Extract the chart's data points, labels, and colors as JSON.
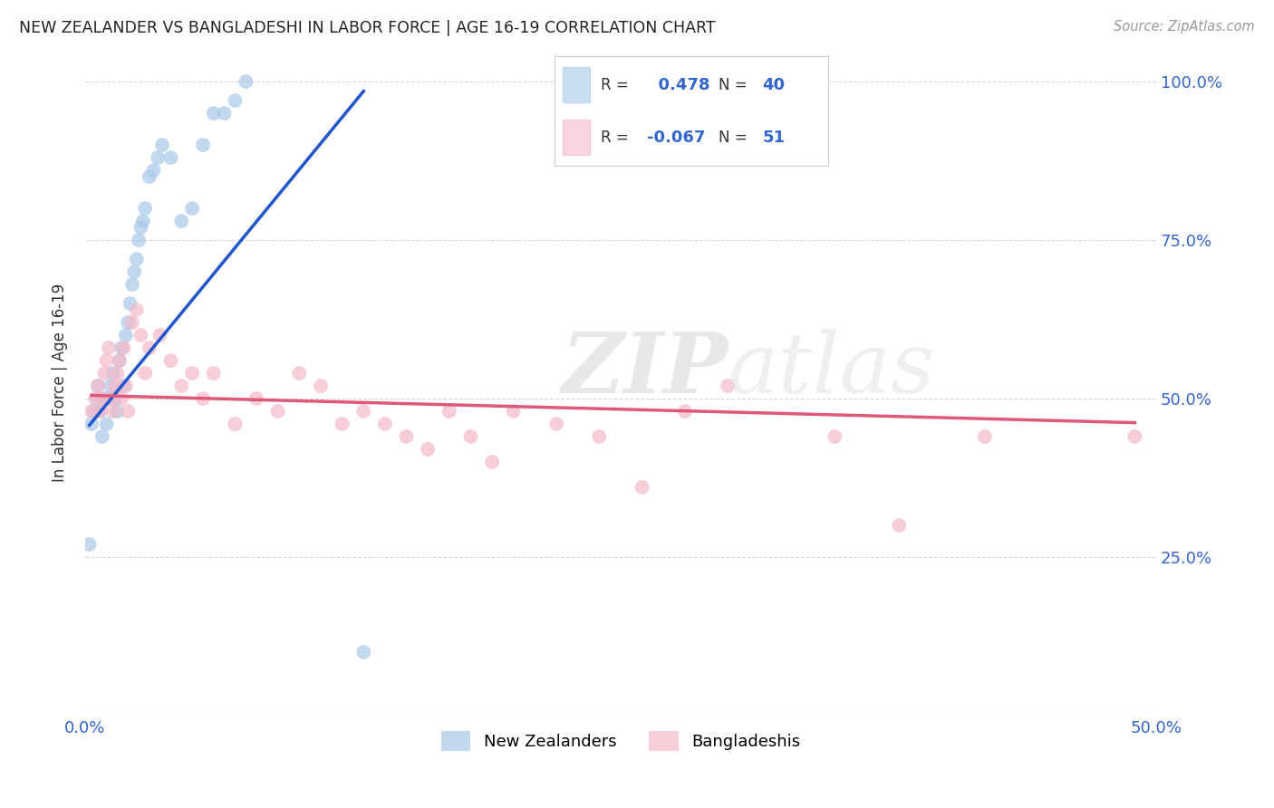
{
  "title": "NEW ZEALANDER VS BANGLADESHI IN LABOR FORCE | AGE 16-19 CORRELATION CHART",
  "source": "Source: ZipAtlas.com",
  "ylabel": "In Labor Force | Age 16-19",
  "xlim": [
    0.0,
    0.5
  ],
  "ylim": [
    0.0,
    1.05
  ],
  "background_color": "#ffffff",
  "grid_color": "#d8d8d8",
  "nz_color": "#a8c8e8",
  "bd_color": "#f4b8c8",
  "nz_line_color": "#2255cc",
  "bd_line_color": "#e05878",
  "nz_R": 0.478,
  "nz_N": 40,
  "bd_R": -0.067,
  "bd_N": 51,
  "legend_value_color": "#3366cc",
  "watermark_zip": "ZIP",
  "watermark_atlas": "atlas",
  "nz_x": [
    0.002,
    0.003,
    0.004,
    0.005,
    0.006,
    0.007,
    0.008,
    0.009,
    0.01,
    0.011,
    0.012,
    0.013,
    0.014,
    0.015,
    0.016,
    0.017,
    0.018,
    0.019,
    0.02,
    0.021,
    0.022,
    0.023,
    0.024,
    0.025,
    0.026,
    0.027,
    0.028,
    0.03,
    0.032,
    0.034,
    0.036,
    0.04,
    0.045,
    0.05,
    0.055,
    0.06,
    0.065,
    0.07,
    0.075,
    0.13
  ],
  "nz_y": [
    0.27,
    0.46,
    0.48,
    0.5,
    0.52,
    0.48,
    0.44,
    0.5,
    0.46,
    0.5,
    0.52,
    0.54,
    0.5,
    0.48,
    0.56,
    0.58,
    0.52,
    0.6,
    0.62,
    0.65,
    0.68,
    0.7,
    0.72,
    0.75,
    0.77,
    0.78,
    0.8,
    0.85,
    0.86,
    0.88,
    0.9,
    0.88,
    0.78,
    0.8,
    0.9,
    0.95,
    0.95,
    0.97,
    1.0,
    0.1
  ],
  "bd_x": [
    0.003,
    0.005,
    0.006,
    0.007,
    0.008,
    0.009,
    0.01,
    0.011,
    0.012,
    0.013,
    0.014,
    0.015,
    0.016,
    0.017,
    0.018,
    0.019,
    0.02,
    0.022,
    0.024,
    0.026,
    0.028,
    0.03,
    0.035,
    0.04,
    0.045,
    0.05,
    0.055,
    0.06,
    0.07,
    0.08,
    0.09,
    0.1,
    0.11,
    0.12,
    0.13,
    0.14,
    0.15,
    0.16,
    0.17,
    0.18,
    0.19,
    0.2,
    0.22,
    0.24,
    0.26,
    0.28,
    0.3,
    0.35,
    0.38,
    0.42,
    0.49
  ],
  "bd_y": [
    0.48,
    0.5,
    0.52,
    0.48,
    0.5,
    0.54,
    0.56,
    0.58,
    0.5,
    0.48,
    0.52,
    0.54,
    0.56,
    0.5,
    0.58,
    0.52,
    0.48,
    0.62,
    0.64,
    0.6,
    0.54,
    0.58,
    0.6,
    0.56,
    0.52,
    0.54,
    0.5,
    0.54,
    0.46,
    0.5,
    0.48,
    0.54,
    0.52,
    0.46,
    0.48,
    0.46,
    0.44,
    0.42,
    0.48,
    0.44,
    0.4,
    0.48,
    0.46,
    0.44,
    0.36,
    0.48,
    0.52,
    0.44,
    0.3,
    0.44,
    0.44
  ],
  "nz_trendline_x": [
    0.002,
    0.13
  ],
  "nz_trendline_y": [
    0.458,
    0.985
  ],
  "bd_trendline_x": [
    0.003,
    0.49
  ],
  "bd_trendline_y": [
    0.505,
    0.462
  ]
}
